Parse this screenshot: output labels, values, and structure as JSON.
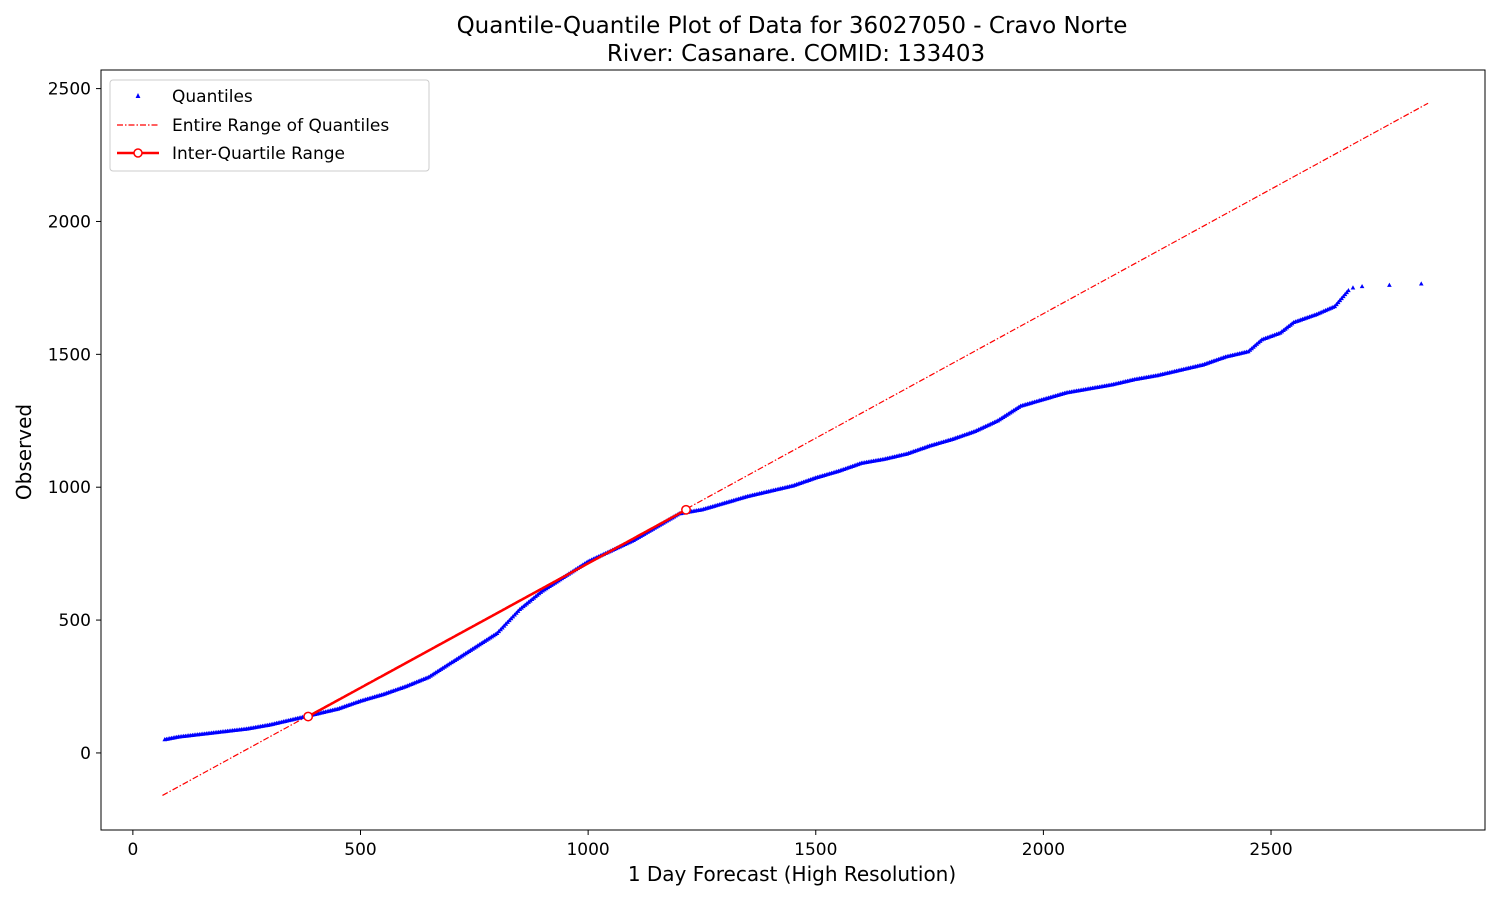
{
  "chart_data": {
    "type": "scatter",
    "title": "Quantile-Quantile Plot of Data for 36027050 - Cravo Norte",
    "subtitle": "River: Casanare. COMID: 133403",
    "xlabel": "1 Day Forecast (High Resolution)",
    "ylabel": "Observed",
    "xlim": [
      -70,
      2970
    ],
    "ylim": [
      -290,
      2570
    ],
    "x_ticks": [
      "0",
      "500",
      "1000",
      "1500",
      "2000",
      "2500"
    ],
    "y_ticks": [
      "0",
      "500",
      "1000",
      "1500",
      "2000",
      "2500"
    ],
    "grid": false,
    "legend_position": "top-left",
    "colors": {
      "quantiles": "#0000ff",
      "range_line": "#ff0000",
      "iqr_line": "#ff0000"
    },
    "series": [
      {
        "name": "Quantiles",
        "style": "markers",
        "anchors": [
          [
            70,
            50
          ],
          [
            100,
            60
          ],
          [
            150,
            70
          ],
          [
            200,
            80
          ],
          [
            250,
            90
          ],
          [
            300,
            105
          ],
          [
            350,
            125
          ],
          [
            400,
            145
          ],
          [
            450,
            165
          ],
          [
            500,
            195
          ],
          [
            550,
            220
          ],
          [
            600,
            250
          ],
          [
            650,
            285
          ],
          [
            700,
            340
          ],
          [
            750,
            395
          ],
          [
            800,
            450
          ],
          [
            850,
            540
          ],
          [
            900,
            610
          ],
          [
            950,
            665
          ],
          [
            1000,
            720
          ],
          [
            1050,
            760
          ],
          [
            1100,
            800
          ],
          [
            1150,
            850
          ],
          [
            1200,
            900
          ],
          [
            1250,
            915
          ],
          [
            1300,
            940
          ],
          [
            1350,
            965
          ],
          [
            1400,
            985
          ],
          [
            1450,
            1005
          ],
          [
            1500,
            1035
          ],
          [
            1550,
            1060
          ],
          [
            1600,
            1090
          ],
          [
            1650,
            1105
          ],
          [
            1700,
            1125
          ],
          [
            1750,
            1155
          ],
          [
            1800,
            1180
          ],
          [
            1850,
            1210
          ],
          [
            1900,
            1250
          ],
          [
            1950,
            1305
          ],
          [
            2000,
            1330
          ],
          [
            2050,
            1355
          ],
          [
            2100,
            1370
          ],
          [
            2150,
            1385
          ],
          [
            2200,
            1405
          ],
          [
            2250,
            1420
          ],
          [
            2300,
            1440
          ],
          [
            2350,
            1460
          ],
          [
            2400,
            1490
          ],
          [
            2450,
            1510
          ],
          [
            2480,
            1555
          ],
          [
            2520,
            1580
          ],
          [
            2550,
            1620
          ],
          [
            2600,
            1650
          ],
          [
            2640,
            1680
          ],
          [
            2670,
            1740
          ]
        ],
        "outliers": [
          [
            2680,
            1750
          ],
          [
            2700,
            1755
          ],
          [
            2760,
            1760
          ],
          [
            2830,
            1765
          ]
        ]
      },
      {
        "name": "Entire Range of Quantiles",
        "style": "dashdot",
        "x": [
          65,
          2845
        ],
        "y": [
          -160,
          2445
        ]
      },
      {
        "name": "Inter-Quartile Range",
        "style": "line-circle",
        "x": [
          385,
          1215
        ],
        "y": [
          137,
          915
        ]
      }
    ]
  }
}
